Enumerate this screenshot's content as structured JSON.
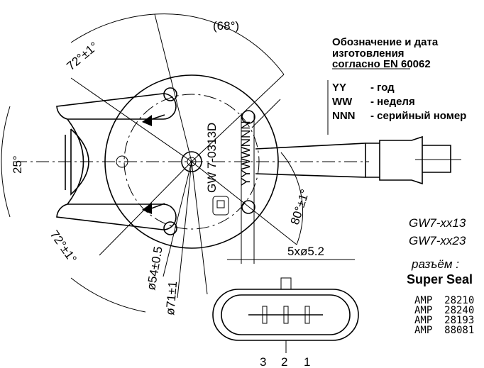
{
  "drawing": {
    "dimensions": [
      "(68°)",
      "72°±1°",
      "25°",
      "72°±1°",
      "ø54±0.5",
      "ø71±1",
      "80°±1°",
      "5xø5.2"
    ],
    "marking": [
      "GW 7-0313D",
      "YYWWNNN"
    ],
    "legend": {
      "title": [
        "Обозначение и дата",
        "изготовления",
        "согласно EN 60062"
      ],
      "rows": [
        {
          "code": "YY",
          "meaning": "- год"
        },
        {
          "code": "WW",
          "meaning": "- неделя"
        },
        {
          "code": "NNN",
          "meaning": "- серийный номер"
        }
      ]
    },
    "models": [
      "GW7-xx13",
      "GW7-xx23"
    ],
    "connector": {
      "label": "разъём :",
      "name": "Super Seal",
      "parts": [
        "AMP  28210",
        "AMP  28240",
        "AMP  28193",
        "AMP  88081"
      ],
      "pins": [
        "3",
        "2",
        "1"
      ]
    }
  }
}
